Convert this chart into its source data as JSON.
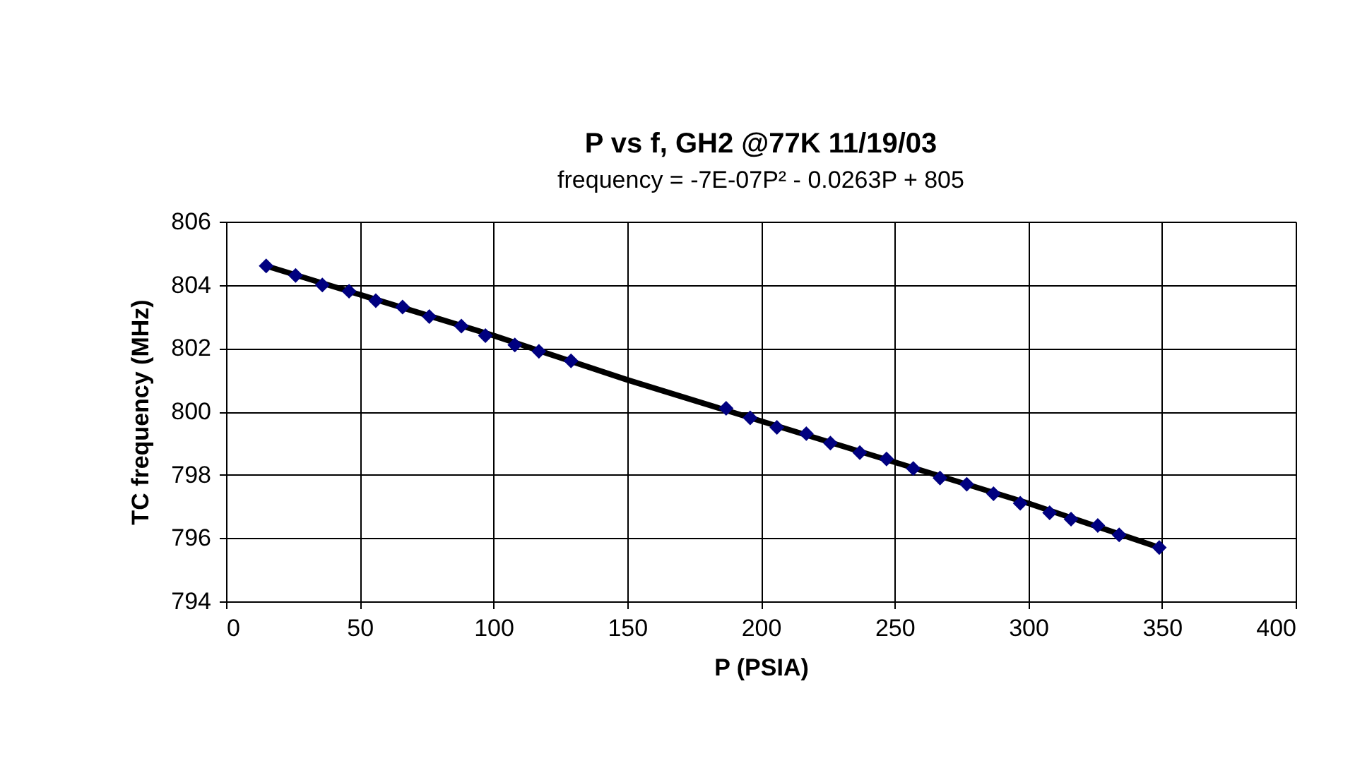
{
  "chart_data": {
    "type": "scatter",
    "title": "P vs f, GH2 @77K 11/19/03",
    "subtitle": "frequency = -7E-07P² - 0.0263P + 805",
    "xlabel": "P (PSIA)",
    "ylabel": "TC frequency (MHz)",
    "xlim": [
      0,
      400
    ],
    "xticks": [
      0,
      50,
      100,
      150,
      200,
      250,
      300,
      350,
      400
    ],
    "ylim": [
      794,
      806
    ],
    "yticks": [
      794,
      796,
      798,
      800,
      802,
      804,
      806
    ],
    "grid": true,
    "marker": "diamond",
    "series": [
      {
        "color": "#000080",
        "x": [
          15,
          26,
          36,
          46,
          56,
          66,
          76,
          88,
          97,
          108,
          117,
          129,
          187,
          196,
          206,
          217,
          226,
          237,
          247,
          257,
          267,
          277,
          287,
          297,
          308,
          316,
          326,
          334,
          349
        ],
        "values": [
          804.6,
          804.3,
          804.0,
          803.8,
          803.5,
          803.3,
          803.0,
          802.7,
          802.4,
          802.1,
          801.9,
          801.6,
          800.1,
          799.8,
          799.5,
          799.3,
          799.0,
          798.7,
          798.5,
          798.2,
          797.9,
          797.7,
          797.4,
          797.1,
          796.8,
          796.6,
          796.4,
          796.1,
          795.7
        ]
      },
      {
        "type": "line",
        "color": "#000000",
        "line_style": "solid",
        "marker": "none",
        "x": [
          15,
          100,
          150,
          200,
          250,
          300,
          349
        ],
        "values": [
          804.6,
          802.4,
          801.0,
          799.7,
          798.4,
          797.1,
          795.7
        ]
      }
    ]
  }
}
